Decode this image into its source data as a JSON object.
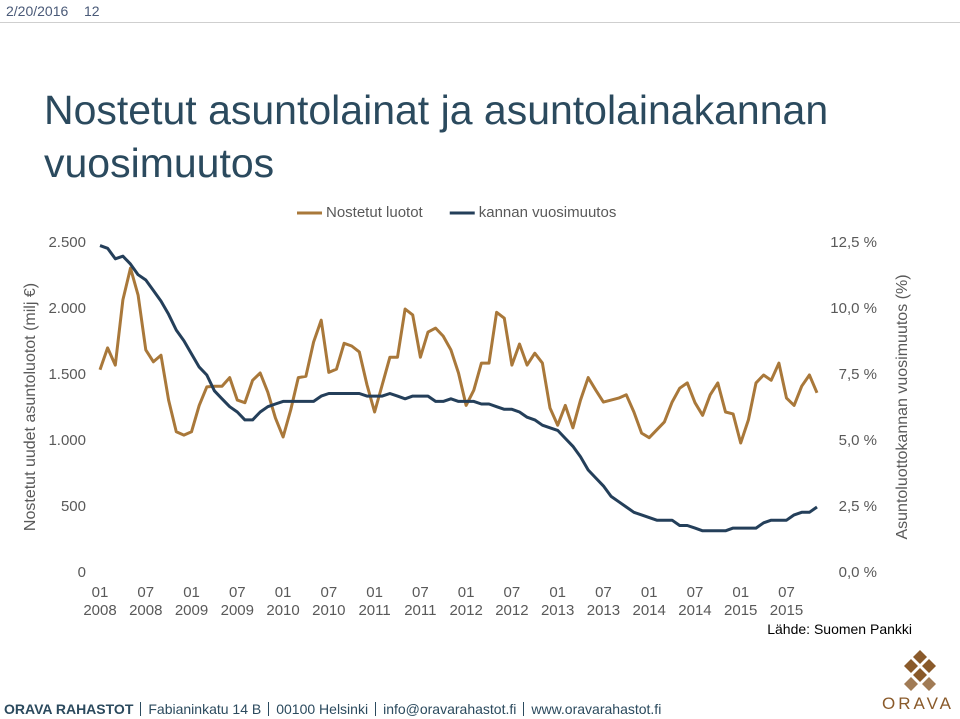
{
  "slide": {
    "date": "2/20/2016",
    "page": "12",
    "title": "Nostetut asuntolainat ja asuntolainakannan vuosimuutos",
    "source": "Lähde: Suomen Pankki",
    "footer": [
      "ORAVA RAHASTOT",
      "Fabianinkatu 14 B",
      "00100 Helsinki",
      "info@oravarahastot.fi",
      "www.oravarahastot.fi"
    ],
    "logo": "ORAVA"
  },
  "chart_data": {
    "type": "line",
    "ylabel": "Nostetut uudet asuntoluotot (milj €)",
    "y2label": "Asuntoluottokannan vuosimuutos (%)",
    "categories": [
      "01 2008",
      null,
      null,
      null,
      null,
      null,
      "07 2008",
      null,
      null,
      null,
      null,
      null,
      "01 2009",
      null,
      null,
      null,
      null,
      null,
      "07 2009",
      null,
      null,
      null,
      null,
      null,
      "01 2010",
      null,
      null,
      null,
      null,
      null,
      "07 2010",
      null,
      null,
      null,
      null,
      null,
      "01 2011",
      null,
      null,
      null,
      null,
      null,
      "07 2011",
      null,
      null,
      null,
      null,
      null,
      "01 2012",
      null,
      null,
      null,
      null,
      null,
      "07 2012",
      null,
      null,
      null,
      null,
      null,
      "01 2013",
      null,
      null,
      null,
      null,
      null,
      "07 2013",
      null,
      null,
      null,
      null,
      null,
      "01 2014",
      null,
      null,
      null,
      null,
      null,
      "07 2014",
      null,
      null,
      null,
      null,
      null,
      "01 2015",
      null,
      null,
      null,
      null,
      null,
      "07 2015",
      null,
      null,
      null,
      null
    ],
    "series": [
      {
        "name": "Nostetut luotot",
        "color": "#a9783a",
        "values": [
          1540,
          1705,
          1575,
          2070,
          2310,
          2105,
          1690,
          1600,
          1650,
          1310,
          1070,
          1045,
          1070,
          1270,
          1410,
          1415,
          1415,
          1480,
          1310,
          1290,
          1460,
          1515,
          1370,
          1175,
          1030,
          1235,
          1480,
          1490,
          1750,
          1915,
          1520,
          1545,
          1740,
          1720,
          1675,
          1425,
          1220,
          1425,
          1635,
          1635,
          2000,
          1955,
          1635,
          1825,
          1855,
          1795,
          1690,
          1515,
          1270,
          1385,
          1590,
          1590,
          1975,
          1930,
          1575,
          1735,
          1575,
          1665,
          1590,
          1250,
          1120,
          1270,
          1100,
          1310,
          1480,
          1385,
          1295,
          1310,
          1325,
          1350,
          1220,
          1060,
          1025,
          1085,
          1145,
          1295,
          1400,
          1440,
          1290,
          1195,
          1350,
          1440,
          1220,
          1205,
          985,
          1160,
          1440,
          1500,
          1460,
          1590,
          1325,
          1270,
          1415,
          1500,
          1365
        ]
      },
      {
        "name": "kannan vuosimuutos",
        "color": "#243f5a",
        "axis": "y2",
        "values": [
          12.4,
          12.3,
          11.9,
          12.0,
          11.7,
          11.3,
          11.1,
          10.7,
          10.3,
          9.8,
          9.2,
          8.8,
          8.3,
          7.8,
          7.5,
          6.9,
          6.6,
          6.3,
          6.1,
          5.8,
          5.8,
          6.1,
          6.3,
          6.4,
          6.5,
          6.5,
          6.5,
          6.5,
          6.5,
          6.7,
          6.8,
          6.8,
          6.8,
          6.8,
          6.8,
          6.7,
          6.7,
          6.7,
          6.8,
          6.7,
          6.6,
          6.7,
          6.7,
          6.7,
          6.5,
          6.5,
          6.6,
          6.5,
          6.5,
          6.5,
          6.4,
          6.4,
          6.3,
          6.2,
          6.2,
          6.1,
          5.9,
          5.8,
          5.6,
          5.5,
          5.4,
          5.1,
          4.8,
          4.4,
          3.9,
          3.6,
          3.3,
          2.9,
          2.7,
          2.5,
          2.3,
          2.2,
          2.1,
          2.0,
          2.0,
          2.0,
          1.8,
          1.8,
          1.7,
          1.6,
          1.6,
          1.6,
          1.6,
          1.7,
          1.7,
          1.7,
          1.7,
          1.9,
          2.0,
          2.0,
          2.0,
          2.2,
          2.3,
          2.3,
          2.5
        ]
      }
    ],
    "ylim": [
      0,
      2500
    ],
    "yticks": [
      0,
      500,
      {
        "value": 1000,
        "label": "1.000"
      },
      {
        "value": 1500,
        "label": "1.500"
      },
      {
        "value": 2000,
        "label": "2.000"
      },
      {
        "value": 2500,
        "label": "2.500"
      }
    ],
    "y2lim": [
      0,
      12.5
    ],
    "y2ticks": [
      {
        "value": 0,
        "label": "0,0 %"
      },
      {
        "value": 2.5,
        "label": "2,5 %"
      },
      {
        "value": 5,
        "label": "5,0 %"
      },
      {
        "value": 7.5,
        "label": "7,5 %"
      },
      {
        "value": 10,
        "label": "10,0 %"
      },
      {
        "value": 12.5,
        "label": "12,5 %"
      }
    ],
    "grid": false,
    "legend": "top"
  }
}
